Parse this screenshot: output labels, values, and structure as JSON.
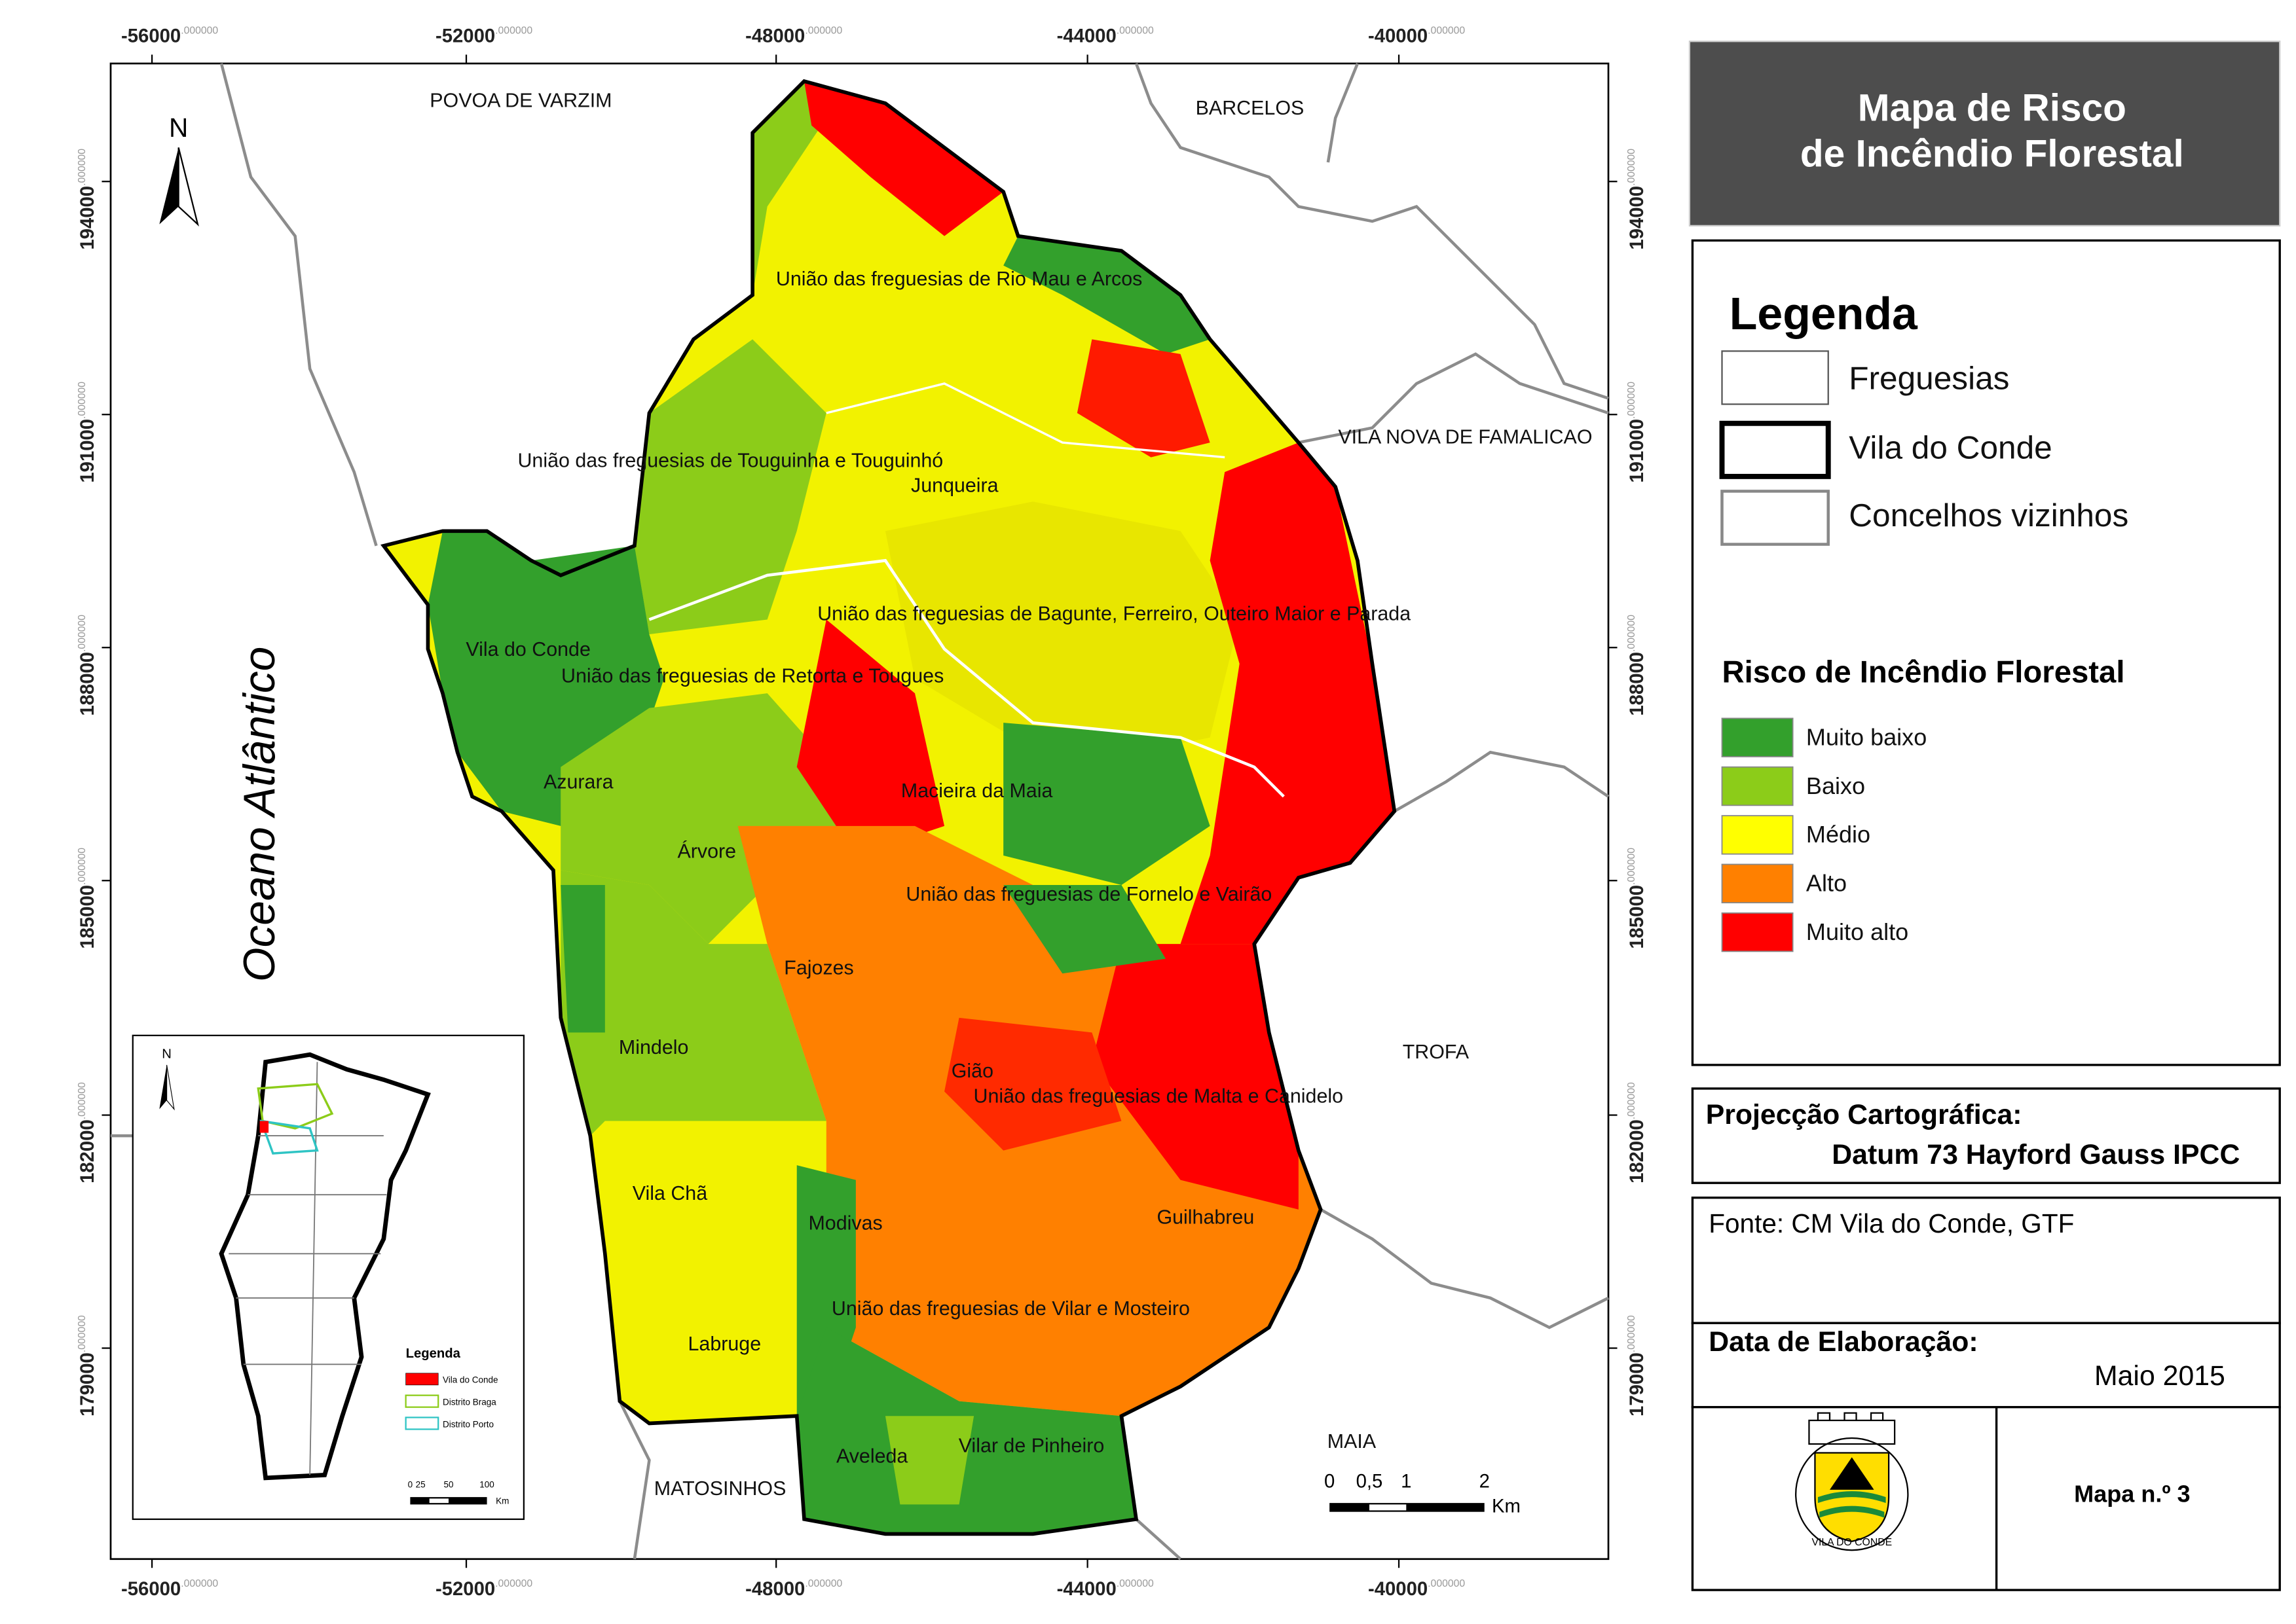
{
  "title": [
    "Mapa de Risco",
    "de Incêndio Florestal"
  ],
  "legend": {
    "title": "Legenda",
    "boundaries": [
      "Freguesias",
      "Vila do Conde",
      "Concelhos vizinhos"
    ],
    "risk_title": "Risco de Incêndio Florestal",
    "risk_classes": [
      "Muito baixo",
      "Baixo",
      "Médio",
      "Alto",
      "Muito alto"
    ]
  },
  "projection": {
    "label": "Projecção Cartográfica:",
    "value": "Datum 73 Hayford Gauss IPCC"
  },
  "source": "Fonte: CM Vila do Conde, GTF",
  "date": {
    "label": "Data de Elaboração:",
    "value": "Maio 2015"
  },
  "map_number": "Mapa n.º 3",
  "logo_text": "VILA DO CONDE",
  "map": {
    "north": "N",
    "ocean": "Oceano Atlântico",
    "neighbors": [
      "POVOA DE VARZIM",
      "BARCELOS",
      "VILA NOVA DE FAMALICAO",
      "TROFA",
      "MAIA",
      "MATOSINHOS"
    ],
    "parishes": [
      "União das freguesias de Rio Mau e Arcos",
      "União das freguesias de Touguinha e Touguinhó",
      "Junqueira",
      "União das freguesias de Bagunte, Ferreiro, Outeiro Maior e Parada",
      "Vila do Conde",
      "União das freguesias de Retorta e Tougues",
      "Azurara",
      "Macieira da Maia",
      "Árvore",
      "União das freguesias de Fornelo e Vairão",
      "Fajozes",
      "Mindelo",
      "Gião",
      "União das freguesias de Malta e Canidelo",
      "Vila Chã",
      "Modivas",
      "Guilhabreu",
      "União das freguesias de Vilar e Mosteiro",
      "Labruge",
      "Aveleda",
      "Vilar de Pinheiro"
    ],
    "x_ticks": [
      "-56000",
      "-52000",
      "-48000",
      "-44000",
      "-40000"
    ],
    "y_ticks": [
      "194000",
      "191000",
      "188000",
      "185000",
      "182000",
      "179000"
    ],
    "tick_decimals": ".000000",
    "scale": {
      "ticks": [
        "0",
        "0,5",
        "1",
        "2"
      ],
      "unit": "Km"
    }
  },
  "inset": {
    "north": "N",
    "legend_title": "Legenda",
    "items": [
      "Vila do Conde",
      "Distrito Braga",
      "Distrito Porto"
    ],
    "scale": [
      "0",
      "25",
      "50",
      "100"
    ],
    "unit": "Km"
  }
}
